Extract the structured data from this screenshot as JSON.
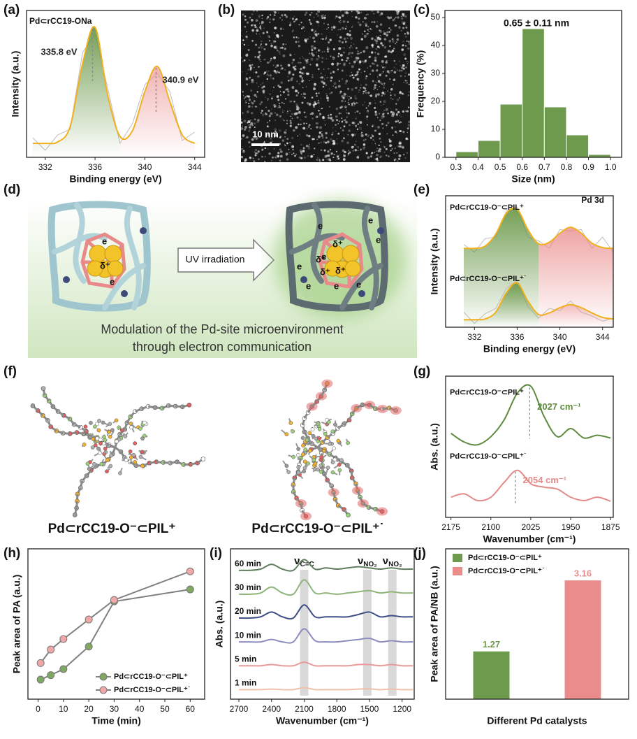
{
  "panel_labels": [
    "(a)",
    "(b)",
    "(c)",
    "(d)",
    "(e)",
    "(f)",
    "(g)",
    "(h)",
    "(i)",
    "(j)"
  ],
  "tem_image": {
    "scale_bar": "10 nm"
  },
  "diagram": {
    "action": "UV irradiation",
    "caption": [
      "Modulation of the Pd-site microenvironment",
      "through electron communication"
    ],
    "electron": "e",
    "charge": "δ⁺"
  },
  "structures": {
    "labels": [
      "Pd⊂rCC19-O⁻⊂PIL⁺",
      "Pd⊂rCC19-O⁻⊂PIL⁺˙"
    ]
  },
  "chart_data": [
    {
      "type": "line",
      "title": "Pd⊂rCC19-ONa",
      "xlabel": "Binding energy (eV)",
      "ylabel": "Intensity (a.u.)",
      "x": [
        331,
        332,
        333,
        334,
        335,
        336,
        337,
        338,
        339,
        340,
        341,
        342,
        343,
        344
      ],
      "xlim": [
        330.5,
        344.8
      ],
      "xticks": [
        332,
        336,
        340,
        344
      ],
      "ylim": [
        0,
        1.05
      ],
      "series": [
        {
          "color": "#bdbdbd",
          "values": [
            0.14,
            0.05,
            0.16,
            0.2,
            0.75,
            0.88,
            0.5,
            0.1,
            0.24,
            0.52,
            0.6,
            0.47,
            0.12,
            0.18
          ]
        },
        {
          "color": "#f2b01e",
          "smooth": true,
          "fill": [
            "#6d9a4c",
            "#ea8c8c"
          ],
          "values": [
            0.1,
            0.1,
            0.11,
            0.22,
            0.67,
            0.93,
            0.45,
            0.15,
            0.19,
            0.47,
            0.65,
            0.4,
            0.16,
            0.1
          ]
        }
      ],
      "annotations": [
        {
          "x": 335.8,
          "label": "335.8 eV"
        },
        {
          "x": 340.9,
          "label": "340.9 eV"
        }
      ]
    },
    {
      "type": "histogram",
      "note": "0.65 ± 0.11 nm",
      "xlabel": "Size (nm)",
      "ylabel": "Frequency (%)",
      "color": "#6d9a4c",
      "bins": [
        0.3,
        0.4,
        0.5,
        0.6,
        0.7,
        0.8,
        0.9,
        1
      ],
      "values": [
        2,
        6,
        19,
        46,
        18,
        8,
        1
      ],
      "xlim": [
        0.25,
        1.05
      ],
      "xticks": [
        0.3,
        0.4,
        0.5,
        0.6,
        0.7,
        0.8,
        0.9,
        {
          "value": 1,
          "label": "1.0"
        }
      ],
      "ylim": [
        0,
        52.5
      ],
      "yticks": [
        0,
        10,
        20,
        30,
        40,
        50
      ]
    },
    {
      "type": "line",
      "note": "Pd 3d",
      "xlabel": "Binding energy (eV)",
      "ylabel": "Intensity (a.u.)",
      "x": [
        331,
        332,
        333,
        334,
        335,
        336,
        337,
        338,
        339,
        340,
        341,
        342,
        343,
        344,
        345
      ],
      "xlim": [
        329.3,
        345
      ],
      "xticks": [
        332,
        336,
        340,
        344
      ],
      "ylim": [
        0,
        1.75
      ],
      "series": [
        {
          "color": "#bdbdbd",
          "values": [
            1.1,
            1.0,
            1.18,
            1.2,
            1.55,
            1.6,
            1.2,
            1.15,
            1.05,
            1.3,
            1.28,
            1.3,
            1.05,
            1.2,
            1.0
          ]
        },
        {
          "name": "Pd⊂rCC19-O⁻⊂PIL⁺",
          "color": "#f2b01e",
          "smooth": true,
          "fill": [
            "#6d9a4c",
            "#ea8c8c"
          ],
          "values": [
            1.05,
            1.05,
            1.08,
            1.24,
            1.52,
            1.57,
            1.3,
            1.11,
            1.13,
            1.25,
            1.33,
            1.25,
            1.12,
            1.06,
            1.05
          ]
        },
        {
          "color": "#bdbdbd",
          "values": [
            0.2,
            0.05,
            0.18,
            0.25,
            0.52,
            0.62,
            0.28,
            0.12,
            0.25,
            0.22,
            0.35,
            0.2,
            0.15,
            0.08,
            0.12
          ]
        },
        {
          "name": "Pd⊂rCC19-O⁻⊂PIL⁺˙",
          "color": "#f2b01e",
          "smooth": true,
          "fill": [
            "#6d9a4c",
            "#ea8c8c"
          ],
          "values": [
            0.1,
            0.1,
            0.11,
            0.2,
            0.46,
            0.59,
            0.35,
            0.17,
            0.19,
            0.26,
            0.3,
            0.26,
            0.19,
            0.13,
            0.11
          ]
        }
      ]
    },
    {
      "type": "line",
      "xlabel": "Wavenumber (cm⁻¹)",
      "ylabel": "Abs. (a.u.)",
      "x": [
        2175,
        2150,
        2125,
        2100,
        2075,
        2050,
        2025,
        2000,
        1975,
        1950,
        1925,
        1900,
        1875
      ],
      "xlim": [
        2185,
        1870
      ],
      "xticks": [
        2175,
        2100,
        2025,
        1950,
        1875
      ],
      "ylim": [
        0,
        2.1
      ],
      "series": [
        {
          "name": "Pd⊂rCC19-O⁻⊂PIL⁺",
          "color": "#5e8a3e",
          "smooth": true,
          "values": [
            1.25,
            1.12,
            1.08,
            1.2,
            1.45,
            1.85,
            1.95,
            1.5,
            1.2,
            1.32,
            1.18,
            1.22,
            1.18
          ]
        },
        {
          "name": "Pd⊂rCC19-O⁻⊂PIL⁺˙",
          "color": "#e58a8a",
          "smooth": true,
          "values": [
            0.3,
            0.35,
            0.25,
            0.3,
            0.52,
            0.7,
            0.5,
            0.45,
            0.42,
            0.3,
            0.25,
            0.3,
            0.24
          ]
        }
      ],
      "annotations": [
        {
          "x": 2027,
          "label": "2027 cm⁻¹"
        },
        {
          "x": 2054,
          "label": "2054 cm⁻¹"
        }
      ]
    },
    {
      "type": "line",
      "xlabel": "Time (min)",
      "ylabel": "Peak area of PA (a.u.)",
      "markers": true,
      "line_color": "#808080",
      "legend": "lower right",
      "x": [
        1,
        5,
        10,
        20,
        30,
        60
      ],
      "xlim": [
        -4,
        65.7
      ],
      "xticks": [
        0,
        10,
        20,
        30,
        40,
        50,
        60
      ],
      "ylim": [
        0,
        10
      ],
      "series": [
        {
          "name": "Pd⊂rCC19-O⁻⊂PIL⁺",
          "color": "#7fa862",
          "values": [
            1.3,
            1.6,
            2.0,
            3.5,
            6.5,
            7.3
          ]
        },
        {
          "name": "Pd⊂rCC19-O⁻⊂PIL⁺˙",
          "color": "#f2a8a8",
          "values": [
            2.4,
            3.3,
            4.0,
            5.3,
            6.6,
            8.5
          ]
        }
      ]
    },
    {
      "type": "line",
      "xlabel": "Wavenumber (cm⁻¹)",
      "ylabel": "Abs. (a.u.)",
      "x": [
        2700,
        2600,
        2500,
        2400,
        2300,
        2200,
        2100,
        2000,
        1900,
        1800,
        1700,
        1600,
        1500,
        1400,
        1300,
        1200,
        1100
      ],
      "xlim": [
        2777,
        1089
      ],
      "xticks": [
        2700,
        2400,
        2100,
        1800,
        1500,
        1200
      ],
      "ylim": [
        -0.4,
        5.9
      ],
      "bands": [
        {
          "x": 2100,
          "label": "ν",
          "sub": "C=C"
        },
        {
          "x": 1520,
          "label": "ν",
          "sub": "NO₂"
        },
        {
          "x": 1290,
          "label": "ν",
          "sub": "NO₂"
        }
      ],
      "series": [
        {
          "name": "60 min",
          "color": "#5f7d5c",
          "smooth": true,
          "values": [
            5.0,
            5.0,
            5.05,
            5.25,
            5.05,
            5.0,
            5.45,
            5.05,
            5.1,
            5.05,
            5.1,
            5.15,
            5.1,
            5.05,
            5.1,
            5.05,
            5.05
          ]
        },
        {
          "name": "30 min",
          "color": "#8fb57a",
          "smooth": true,
          "values": [
            4.0,
            4.0,
            4.05,
            4.3,
            4.05,
            4.0,
            4.6,
            4.05,
            4.05,
            4.0,
            4.05,
            4.1,
            4.15,
            4.05,
            4.1,
            4.05,
            4.05
          ]
        },
        {
          "name": "20 min",
          "color": "#3f4f86",
          "smooth": true,
          "values": [
            3.0,
            3.0,
            3.05,
            3.25,
            3.05,
            3.0,
            3.55,
            3.05,
            3.05,
            3.05,
            3.05,
            3.15,
            3.25,
            3.05,
            3.1,
            3.05,
            3.05
          ]
        },
        {
          "name": "10 min",
          "color": "#8c8cc0",
          "smooth": true,
          "values": [
            2.0,
            2.0,
            2.0,
            2.1,
            2.0,
            2.0,
            2.55,
            2.05,
            2.0,
            2.0,
            2.05,
            2.1,
            2.15,
            2.0,
            2.05,
            2.0,
            2.0
          ]
        },
        {
          "name": "5 min",
          "color": "#e89a9a",
          "smooth": true,
          "values": [
            1.0,
            1.0,
            1.0,
            1.05,
            1.0,
            1.0,
            1.15,
            1.0,
            1.0,
            1.0,
            1.0,
            1.05,
            1.05,
            1.0,
            1.05,
            1.0,
            1.0
          ]
        },
        {
          "name": "1 min",
          "color": "#f0c0a8",
          "smooth": true,
          "values": [
            0.0,
            0.0,
            0.0,
            0.02,
            0.0,
            0.0,
            0.08,
            0.0,
            0.0,
            0.0,
            0.0,
            0.02,
            0.03,
            0.0,
            0.02,
            0.0,
            0.0
          ]
        }
      ]
    },
    {
      "type": "bar",
      "xlabel": "Different Pd catalysts",
      "ylabel": "Peak area of PA/NB (a.u.)",
      "ylim": [
        0,
        4
      ],
      "legend": "upper left",
      "series": [
        {
          "name": "Pd⊂rCC19-O⁻⊂PIL⁺",
          "color": "#6d9a4c",
          "values": [
            1.27
          ]
        },
        {
          "name": "Pd⊂rCC19-O⁻⊂PIL⁺˙",
          "color": "#ea8c8c",
          "values": [
            3.16
          ]
        }
      ]
    }
  ]
}
